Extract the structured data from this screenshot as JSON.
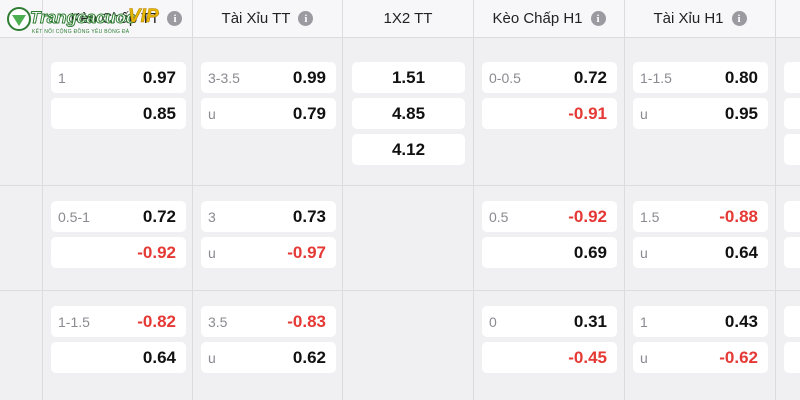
{
  "header": {
    "logo": {
      "name": "Trangcacuoc",
      "vip": "VIP",
      "tagline": "KẾT NỐI CỘNG ĐỒNG YÊU BÓNG ĐÁ"
    },
    "columns": [
      {
        "title": "Kèo Chấp TT",
        "info": true
      },
      {
        "title": "Tài Xỉu TT",
        "info": true
      },
      {
        "title": "1X2 TT",
        "info": false
      },
      {
        "title": "Kèo Chấp H1",
        "info": true
      },
      {
        "title": "Tài Xỉu H1",
        "info": true
      }
    ]
  },
  "rows": [
    [
      [
        {
          "label": "1",
          "odds": "0.97"
        },
        {
          "odds": "0.85"
        }
      ],
      [
        {
          "label": "3-3.5",
          "odds": "0.99"
        },
        {
          "label": "u",
          "odds": "0.79"
        }
      ],
      [
        {
          "odds": "1.51"
        },
        {
          "odds": "4.85"
        },
        {
          "odds": "4.12"
        }
      ],
      [
        {
          "label": "0-0.5",
          "odds": "0.72"
        },
        {
          "odds": "-0.91"
        }
      ],
      [
        {
          "label": "1-1.5",
          "odds": "0.80"
        },
        {
          "label": "u",
          "odds": "0.95"
        }
      ]
    ],
    [
      [
        {
          "label": "0.5-1",
          "odds": "0.72"
        },
        {
          "odds": "-0.92"
        }
      ],
      [
        {
          "label": "3",
          "odds": "0.73"
        },
        {
          "label": "u",
          "odds": "-0.97"
        }
      ],
      [],
      [
        {
          "label": "0.5",
          "odds": "-0.92"
        },
        {
          "odds": "0.69"
        }
      ],
      [
        {
          "label": "1.5",
          "odds": "-0.88"
        },
        {
          "label": "u",
          "odds": "0.64"
        }
      ]
    ],
    [
      [
        {
          "label": "1-1.5",
          "odds": "-0.82"
        },
        {
          "odds": "0.64"
        }
      ],
      [
        {
          "label": "3.5",
          "odds": "-0.83"
        },
        {
          "label": "u",
          "odds": "0.62"
        }
      ],
      [],
      [
        {
          "label": "0",
          "odds": "0.31"
        },
        {
          "odds": "-0.45"
        }
      ],
      [
        {
          "label": "1",
          "odds": "0.43"
        },
        {
          "label": "u",
          "odds": "-0.62"
        }
      ]
    ]
  ]
}
